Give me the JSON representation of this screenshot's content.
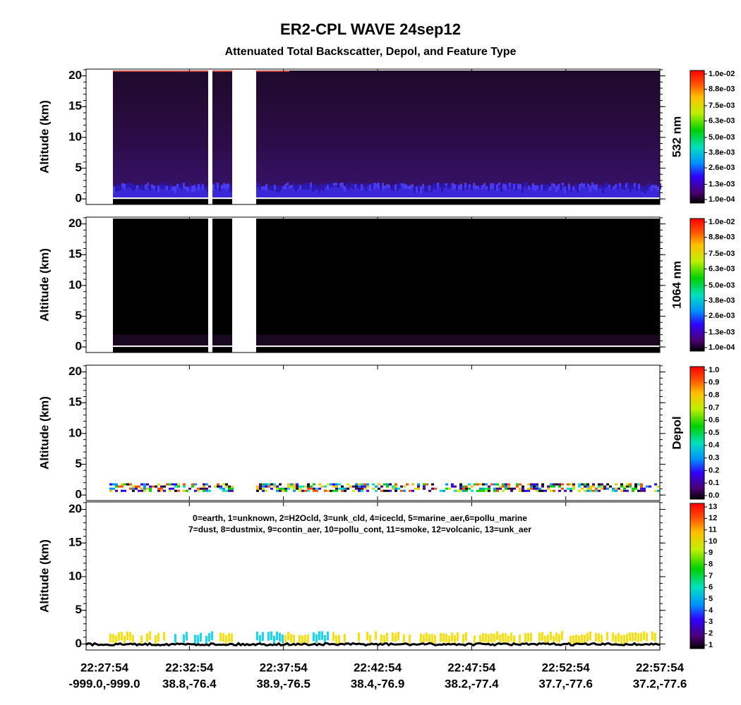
{
  "chart_data": {
    "type": "lidar-curtain",
    "title": "ER2-CPL WAVE 24sep12",
    "subtitle": "Attenuated Total Backscatter, Depol, and Feature Type",
    "x_ticks": [
      {
        "time": "22:27:54",
        "coord": "-999.0,-999.0"
      },
      {
        "time": "22:32:54",
        "coord": "38.8,-76.4"
      },
      {
        "time": "22:37:54",
        "coord": "38.9,-76.5"
      },
      {
        "time": "22:42:54",
        "coord": "38.4,-76.9"
      },
      {
        "time": "22:47:54",
        "coord": "38.2,-77.4"
      },
      {
        "time": "22:52:54",
        "coord": "37.7,-77.6"
      },
      {
        "time": "22:57:54",
        "coord": "37.2,-77.6"
      }
    ],
    "panels": [
      {
        "y_label": "Altitude (km)",
        "ylim": [
          -0.9,
          21.1
        ],
        "yticks": [
          0,
          5,
          10,
          15,
          20
        ],
        "colorbar": {
          "label": "532 nm",
          "lim": [
            0.0001,
            0.01
          ],
          "ticks": [
            {
              "value": 0.01,
              "label": "1.0e-02"
            },
            {
              "value": 0.0088,
              "label": "8.8e-03"
            },
            {
              "value": 0.0075,
              "label": "7.5e-03"
            },
            {
              "value": 0.0063,
              "label": "6.3e-03"
            },
            {
              "value": 0.005,
              "label": "5.0e-03"
            },
            {
              "value": 0.0038,
              "label": "3.8e-03"
            },
            {
              "value": 0.0026,
              "label": "2.6e-03"
            },
            {
              "value": 0.0013,
              "label": "1.3e-03"
            },
            {
              "value": 0.0001,
              "label": "1.0e-04"
            }
          ]
        }
      },
      {
        "y_label": "Altitude (km)",
        "ylim": [
          -0.9,
          21.1
        ],
        "yticks": [
          0,
          5,
          10,
          15,
          20
        ],
        "colorbar": {
          "label": "1064 nm",
          "lim": [
            0.0001,
            0.01
          ],
          "ticks": [
            {
              "value": 0.01,
              "label": "1.0e-02"
            },
            {
              "value": 0.0088,
              "label": "8.8e-03"
            },
            {
              "value": 0.0075,
              "label": "7.5e-03"
            },
            {
              "value": 0.0063,
              "label": "6.3e-03"
            },
            {
              "value": 0.005,
              "label": "5.0e-03"
            },
            {
              "value": 0.0038,
              "label": "3.8e-03"
            },
            {
              "value": 0.0026,
              "label": "2.6e-03"
            },
            {
              "value": 0.0013,
              "label": "1.3e-03"
            },
            {
              "value": 0.0001,
              "label": "1.0e-04"
            }
          ]
        }
      },
      {
        "y_label": "Altitude (km)",
        "ylim": [
          -0.9,
          21.1
        ],
        "yticks": [
          0,
          5,
          10,
          15,
          20
        ],
        "colorbar": {
          "label": "Depol",
          "lim": [
            0,
            1
          ],
          "ticks": [
            {
              "value": 1,
              "label": "1.0"
            },
            0.9,
            0.8,
            0.7,
            0.6,
            0.5,
            0.4,
            0.3,
            0.2,
            0.1,
            {
              "value": 0,
              "label": "0.0"
            }
          ]
        }
      },
      {
        "y_label": "Altitude (km)",
        "ylim": [
          -0.9,
          21.1
        ],
        "yticks": [
          0,
          5,
          10,
          15,
          20
        ],
        "legend": [
          "0=earth, 1=unknown, 2=H2Ocld, 3=unk_cld, 4=icecld, 5=marine_aer,6=pollu_marine",
          "7=dust, 8=dustmix, 9=contin_aer, 10=pollu_cont, 11=smoke, 12=volcanic, 13=unk_aer"
        ],
        "colorbar": {
          "lim": [
            1,
            13
          ],
          "ticks": [
            13,
            12,
            11,
            10,
            9,
            8,
            7,
            6,
            5,
            4,
            3,
            2,
            1
          ]
        }
      }
    ]
  }
}
